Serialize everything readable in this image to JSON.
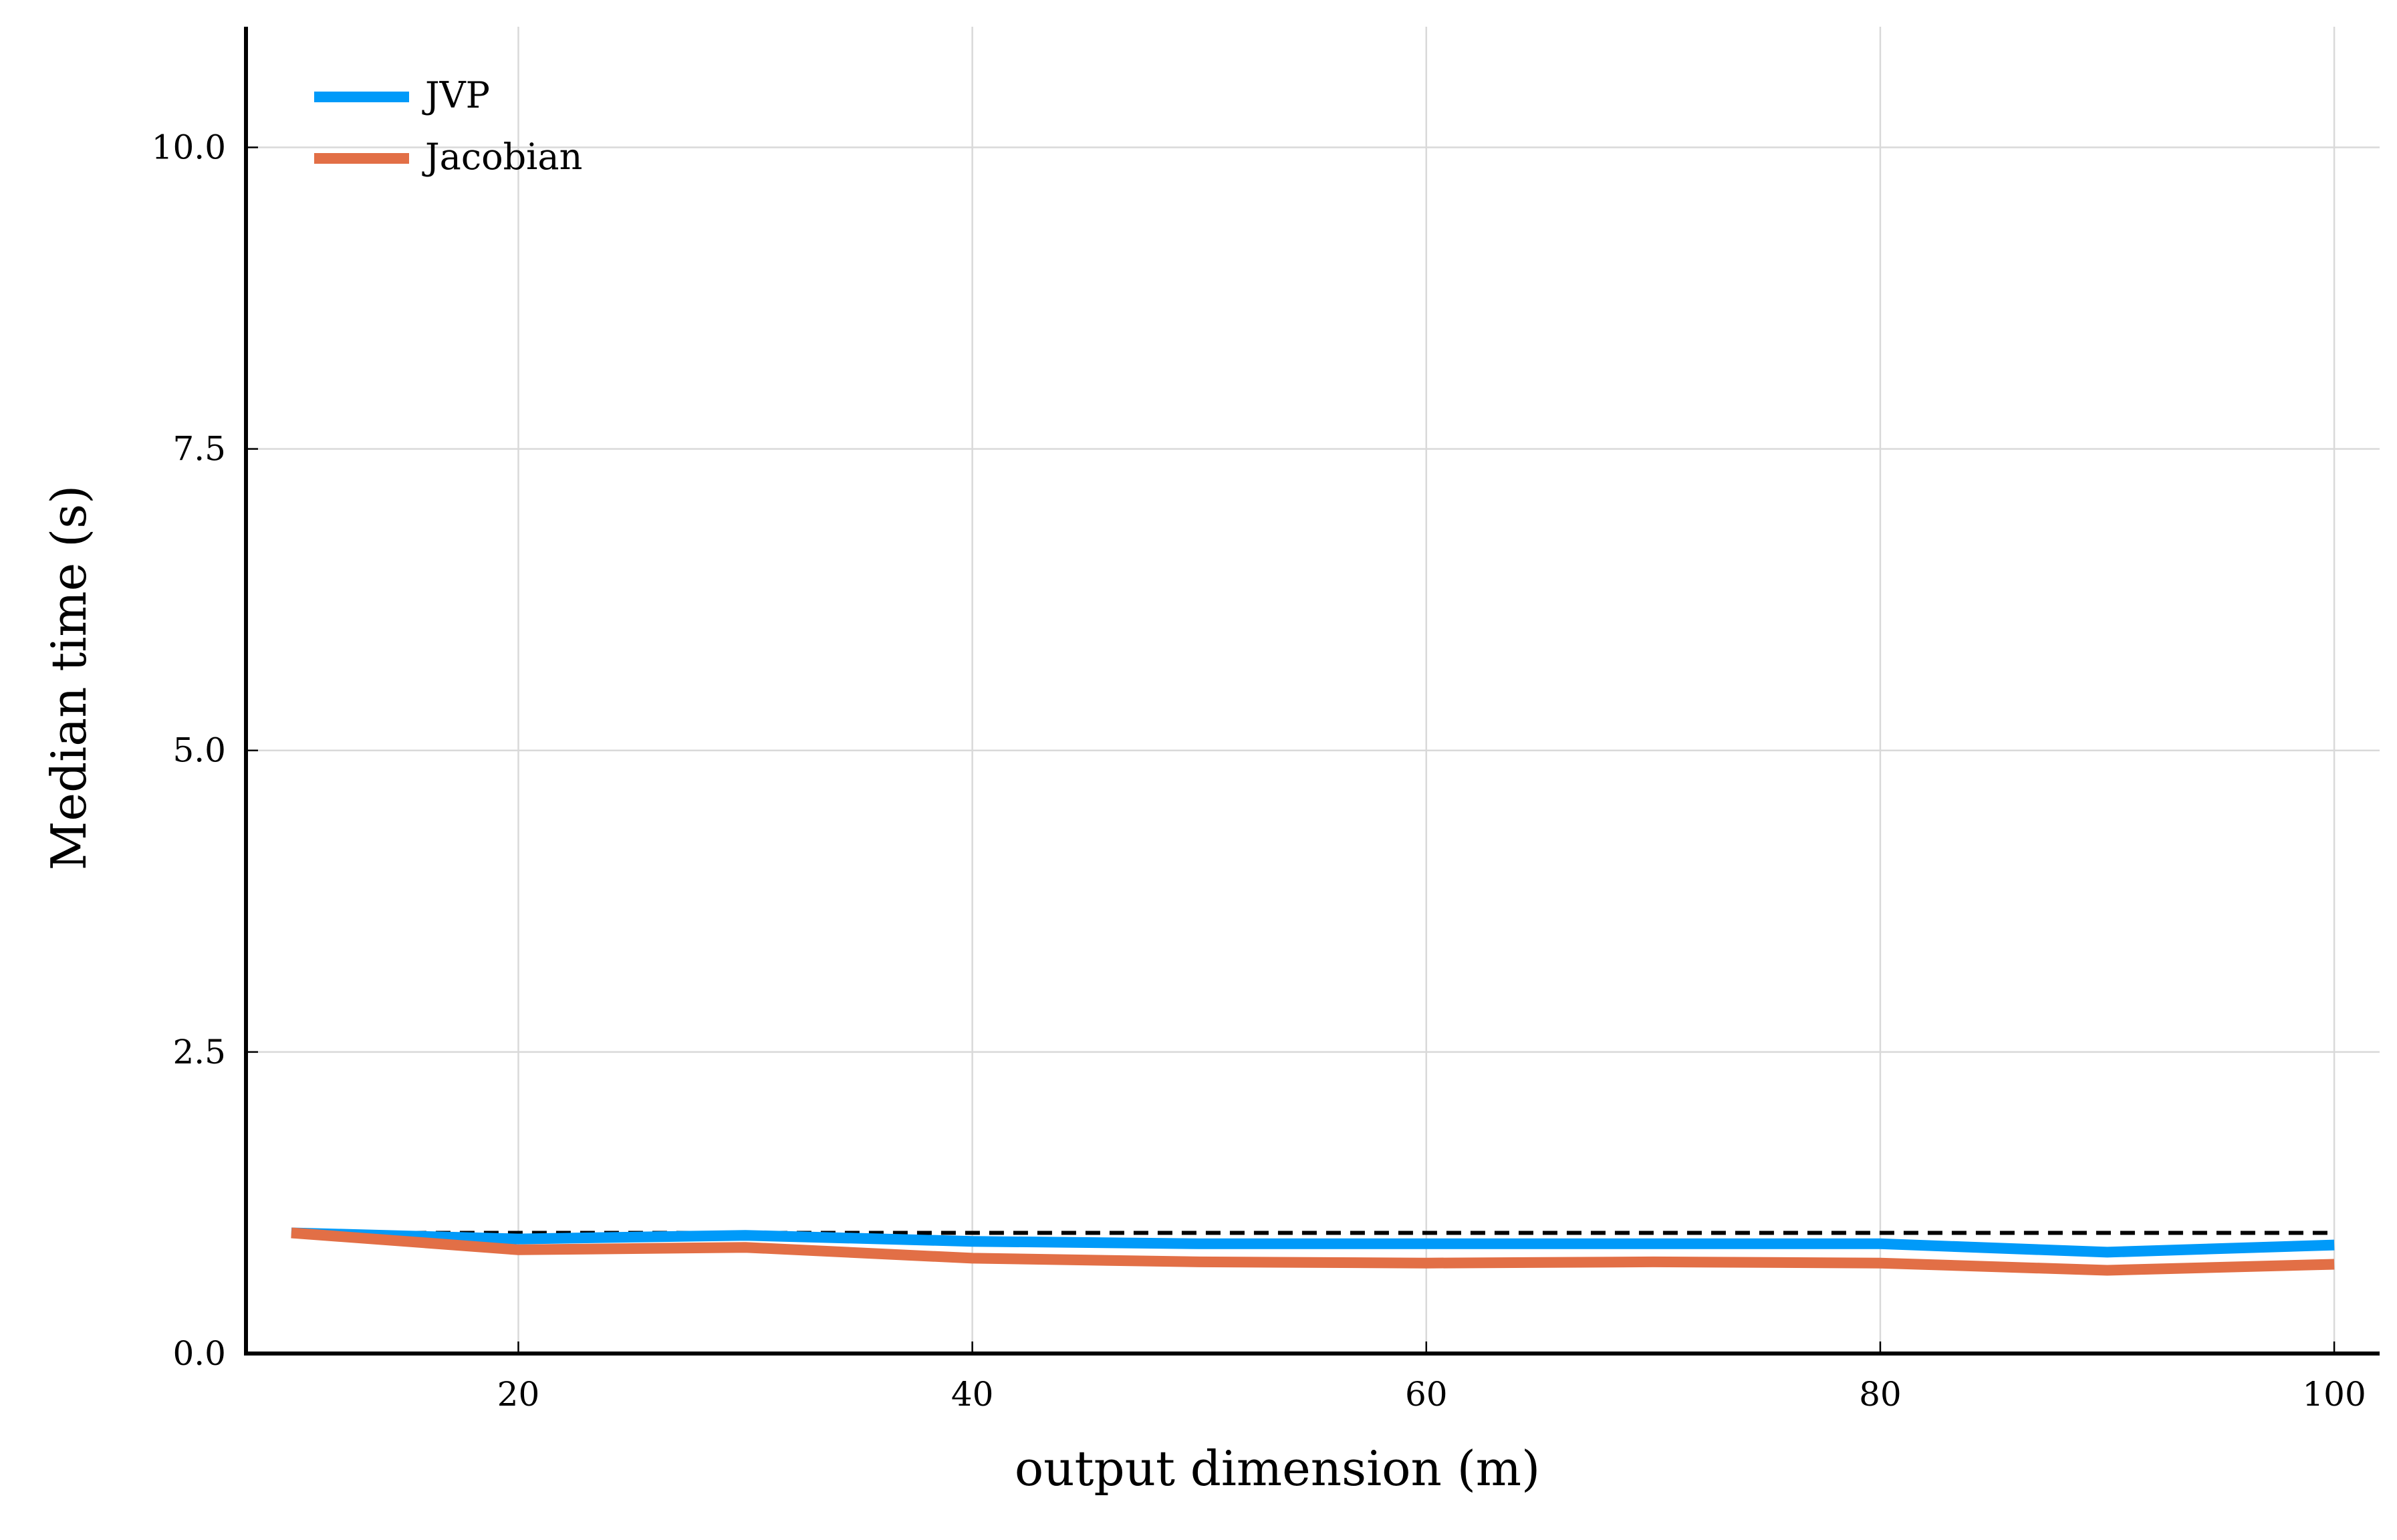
{
  "chart_data": {
    "type": "line",
    "title": "",
    "xlabel": "output dimension (m)",
    "ylabel": "Median time (s)",
    "xlim": [
      8,
      102
    ],
    "ylim": [
      0,
      11
    ],
    "xticks": [
      20,
      40,
      60,
      80,
      100
    ],
    "xtick_labels": [
      "20",
      "40",
      "60",
      "80",
      "100"
    ],
    "yticks": [
      0,
      2.5,
      5,
      7.5,
      10
    ],
    "ytick_labels": [
      "0.0",
      "2.5",
      "5.0",
      "7.5",
      "10.0"
    ],
    "grid": true,
    "legend_position": "top-left",
    "x": [
      10,
      20,
      30,
      40,
      50,
      60,
      70,
      80,
      90,
      100
    ],
    "series": [
      {
        "name": "JVP",
        "color": "#009af9",
        "values": [
          1.0,
          0.95,
          0.98,
          0.93,
          0.91,
          0.91,
          0.91,
          0.91,
          0.84,
          0.9
        ]
      },
      {
        "name": "Jacobian",
        "color": "#e26f46",
        "values": [
          1.0,
          0.86,
          0.88,
          0.79,
          0.76,
          0.75,
          0.76,
          0.75,
          0.69,
          0.74
        ]
      }
    ],
    "reference_line": {
      "y": 1.0,
      "style": "dashed",
      "color": "#000000"
    }
  }
}
